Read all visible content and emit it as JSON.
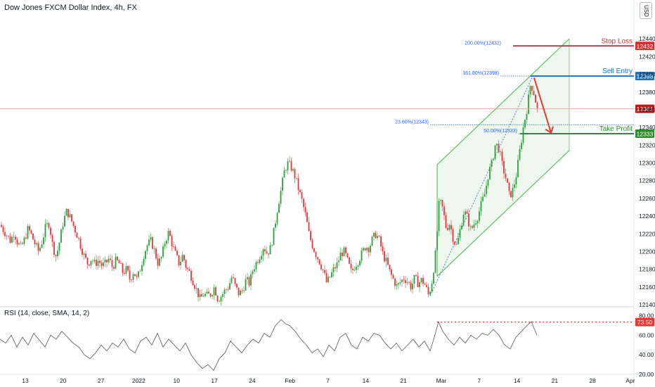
{
  "header": {
    "title": "Dow Jones FXCM Dollar Index, 4h, FX",
    "currency": "USD"
  },
  "rsi_panel": {
    "title": "RSI (14, close, SMA, 14, 2)"
  },
  "colors": {
    "up": "#26a69a",
    "down": "#ef5350",
    "upBody": "#2e9e3e",
    "downBody": "#e0383c",
    "stop": "#d32f2f",
    "entry": "#1e6fb8",
    "take": "#2e8b2e",
    "channel": "#4caf50",
    "channelFill": "rgba(76,175,80,0.10)",
    "arrow": "#e53935",
    "fib": "#3f6fc4",
    "rsiLine": "#555555"
  },
  "chart_data": {
    "type": "candlestick",
    "timeframe": "4h",
    "ylim": [
      12140,
      12460
    ],
    "y_ticks": [
      12140,
      12160,
      12180,
      12200,
      12220,
      12240,
      12260,
      12280,
      12300,
      12320,
      12340,
      12360,
      12380,
      12400,
      12420,
      12440
    ],
    "x_ticks": [
      "13",
      "20",
      "27",
      "2022",
      "10",
      "17",
      "24",
      "Feb",
      "7",
      "14",
      "21",
      "Mar",
      "7",
      "14",
      "21",
      "28",
      "Apr"
    ],
    "current_price": 12361,
    "levels": [
      {
        "label": "Stop Loss",
        "value": 12432,
        "badge": "12432"
      },
      {
        "label": "Sell Entry",
        "value": 12398,
        "badge": "12398"
      },
      {
        "label": "Take Profit",
        "value": 12333,
        "badge": "12333"
      }
    ],
    "fib_labels": [
      {
        "text": "200.00%(12432)",
        "value": 12432
      },
      {
        "text": "161.80%(12398)",
        "value": 12398
      },
      {
        "text": "23.60%(12343)",
        "value": 12343
      },
      {
        "text": "50.00%(12333)",
        "value": 12333
      }
    ],
    "close_path": [
      [
        0,
        12230
      ],
      [
        5,
        12224
      ],
      [
        10,
        12218
      ],
      [
        15,
        12212
      ],
      [
        20,
        12222
      ],
      [
        25,
        12210
      ],
      [
        30,
        12204
      ],
      [
        35,
        12214
      ],
      [
        40,
        12226
      ],
      [
        45,
        12218
      ],
      [
        50,
        12208
      ],
      [
        55,
        12200
      ],
      [
        60,
        12212
      ],
      [
        65,
        12228
      ],
      [
        70,
        12232
      ],
      [
        75,
        12206
      ],
      [
        80,
        12194
      ],
      [
        85,
        12212
      ],
      [
        90,
        12234
      ],
      [
        95,
        12246
      ],
      [
        100,
        12238
      ],
      [
        105,
        12228
      ],
      [
        110,
        12218
      ],
      [
        115,
        12206
      ],
      [
        120,
        12194
      ],
      [
        125,
        12186
      ],
      [
        130,
        12192
      ],
      [
        135,
        12186
      ],
      [
        140,
        12190
      ],
      [
        145,
        12184
      ],
      [
        150,
        12186
      ],
      [
        155,
        12192
      ],
      [
        160,
        12182
      ],
      [
        165,
        12190
      ],
      [
        170,
        12186
      ],
      [
        175,
        12176
      ],
      [
        180,
        12180
      ],
      [
        185,
        12168
      ],
      [
        190,
        12178
      ],
      [
        195,
        12168
      ],
      [
        200,
        12182
      ],
      [
        205,
        12198
      ],
      [
        210,
        12208
      ],
      [
        215,
        12212
      ],
      [
        220,
        12200
      ],
      [
        225,
        12186
      ],
      [
        230,
        12194
      ],
      [
        235,
        12212
      ],
      [
        240,
        12222
      ],
      [
        245,
        12208
      ],
      [
        250,
        12196
      ],
      [
        255,
        12186
      ],
      [
        260,
        12196
      ],
      [
        265,
        12182
      ],
      [
        270,
        12176
      ],
      [
        275,
        12166
      ],
      [
        280,
        12156
      ],
      [
        285,
        12146
      ],
      [
        290,
        12152
      ],
      [
        295,
        12150
      ],
      [
        300,
        12152
      ],
      [
        305,
        12160
      ],
      [
        310,
        12146
      ],
      [
        315,
        12150
      ],
      [
        320,
        12156
      ],
      [
        325,
        12160
      ],
      [
        330,
        12172
      ],
      [
        335,
        12160
      ],
      [
        340,
        12152
      ],
      [
        345,
        12156
      ],
      [
        350,
        12168
      ],
      [
        355,
        12164
      ],
      [
        360,
        12180
      ],
      [
        365,
        12188
      ],
      [
        370,
        12196
      ],
      [
        375,
        12206
      ],
      [
        380,
        12198
      ],
      [
        385,
        12204
      ],
      [
        390,
        12224
      ],
      [
        395,
        12250
      ],
      [
        400,
        12270
      ],
      [
        405,
        12292
      ],
      [
        410,
        12300
      ],
      [
        415,
        12294
      ],
      [
        420,
        12284
      ],
      [
        425,
        12270
      ],
      [
        430,
        12256
      ],
      [
        435,
        12240
      ],
      [
        440,
        12218
      ],
      [
        445,
        12206
      ],
      [
        450,
        12196
      ],
      [
        455,
        12188
      ],
      [
        460,
        12178
      ],
      [
        465,
        12164
      ],
      [
        470,
        12172
      ],
      [
        475,
        12180
      ],
      [
        480,
        12186
      ],
      [
        485,
        12198
      ],
      [
        490,
        12200
      ],
      [
        495,
        12188
      ],
      [
        500,
        12176
      ],
      [
        505,
        12184
      ],
      [
        510,
        12190
      ],
      [
        515,
        12198
      ],
      [
        520,
        12206
      ],
      [
        525,
        12204
      ],
      [
        530,
        12214
      ],
      [
        535,
        12220
      ],
      [
        540,
        12212
      ],
      [
        545,
        12196
      ],
      [
        550,
        12188
      ],
      [
        555,
        12176
      ],
      [
        560,
        12168
      ],
      [
        565,
        12160
      ],
      [
        570,
        12166
      ],
      [
        575,
        12170
      ],
      [
        580,
        12166
      ],
      [
        585,
        12160
      ],
      [
        590,
        12170
      ],
      [
        595,
        12164
      ],
      [
        600,
        12168
      ],
      [
        605,
        12162
      ],
      [
        610,
        12150
      ],
      [
        615,
        12168
      ],
      [
        620,
        12200
      ],
      [
        625,
        12258
      ],
      [
        630,
        12248
      ],
      [
        635,
        12226
      ],
      [
        640,
        12232
      ],
      [
        645,
        12214
      ],
      [
        650,
        12206
      ],
      [
        655,
        12226
      ],
      [
        660,
        12246
      ],
      [
        665,
        12238
      ],
      [
        670,
        12224
      ],
      [
        675,
        12232
      ],
      [
        680,
        12240
      ],
      [
        685,
        12254
      ],
      [
        690,
        12266
      ],
      [
        695,
        12288
      ],
      [
        700,
        12300
      ],
      [
        705,
        12322
      ],
      [
        710,
        12316
      ],
      [
        715,
        12296
      ],
      [
        720,
        12282
      ],
      [
        725,
        12262
      ],
      [
        730,
        12270
      ],
      [
        735,
        12288
      ],
      [
        740,
        12316
      ],
      [
        745,
        12342
      ],
      [
        750,
        12362
      ],
      [
        755,
        12390
      ],
      [
        760,
        12378
      ],
      [
        765,
        12358
      ]
    ],
    "rsi": {
      "ylim": [
        20,
        80
      ],
      "y_ticks": [
        20.0,
        40.0,
        60.0,
        80.0
      ],
      "current": 73.5,
      "current_label": "73.50",
      "path": [
        [
          0,
          56
        ],
        [
          8,
          52
        ],
        [
          16,
          60
        ],
        [
          24,
          48
        ],
        [
          32,
          58
        ],
        [
          40,
          50
        ],
        [
          48,
          62
        ],
        [
          56,
          55
        ],
        [
          64,
          48
        ],
        [
          72,
          60
        ],
        [
          80,
          56
        ],
        [
          88,
          64
        ],
        [
          96,
          58
        ],
        [
          104,
          52
        ],
        [
          112,
          48
        ],
        [
          120,
          40
        ],
        [
          128,
          36
        ],
        [
          136,
          42
        ],
        [
          144,
          50
        ],
        [
          152,
          44
        ],
        [
          160,
          52
        ],
        [
          168,
          48
        ],
        [
          176,
          56
        ],
        [
          184,
          46
        ],
        [
          192,
          42
        ],
        [
          200,
          54
        ],
        [
          208,
          58
        ],
        [
          216,
          50
        ],
        [
          224,
          62
        ],
        [
          232,
          48
        ],
        [
          240,
          56
        ],
        [
          248,
          50
        ],
        [
          256,
          44
        ],
        [
          264,
          52
        ],
        [
          272,
          40
        ],
        [
          280,
          32
        ],
        [
          288,
          26
        ],
        [
          296,
          30
        ],
        [
          304,
          24
        ],
        [
          312,
          36
        ],
        [
          320,
          42
        ],
        [
          328,
          54
        ],
        [
          336,
          48
        ],
        [
          344,
          42
        ],
        [
          352,
          50
        ],
        [
          360,
          56
        ],
        [
          368,
          52
        ],
        [
          376,
          62
        ],
        [
          384,
          58
        ],
        [
          392,
          70
        ],
        [
          400,
          76
        ],
        [
          406,
          72
        ],
        [
          412,
          70
        ],
        [
          420,
          64
        ],
        [
          428,
          56
        ],
        [
          436,
          50
        ],
        [
          444,
          42
        ],
        [
          452,
          46
        ],
        [
          460,
          38
        ],
        [
          468,
          50
        ],
        [
          476,
          44
        ],
        [
          484,
          58
        ],
        [
          492,
          62
        ],
        [
          500,
          50
        ],
        [
          508,
          46
        ],
        [
          516,
          58
        ],
        [
          524,
          54
        ],
        [
          532,
          62
        ],
        [
          540,
          60
        ],
        [
          548,
          52
        ],
        [
          556,
          46
        ],
        [
          564,
          52
        ],
        [
          572,
          44
        ],
        [
          580,
          50
        ],
        [
          588,
          56
        ],
        [
          596,
          48
        ],
        [
          604,
          54
        ],
        [
          612,
          44
        ],
        [
          618,
          58
        ],
        [
          624,
          74
        ],
        [
          630,
          64
        ],
        [
          638,
          56
        ],
        [
          646,
          50
        ],
        [
          654,
          58
        ],
        [
          662,
          52
        ],
        [
          670,
          60
        ],
        [
          678,
          56
        ],
        [
          686,
          62
        ],
        [
          694,
          60
        ],
        [
          702,
          66
        ],
        [
          710,
          60
        ],
        [
          718,
          50
        ],
        [
          726,
          46
        ],
        [
          734,
          58
        ],
        [
          742,
          64
        ],
        [
          750,
          70
        ],
        [
          756,
          74
        ],
        [
          764,
          60
        ]
      ]
    }
  }
}
